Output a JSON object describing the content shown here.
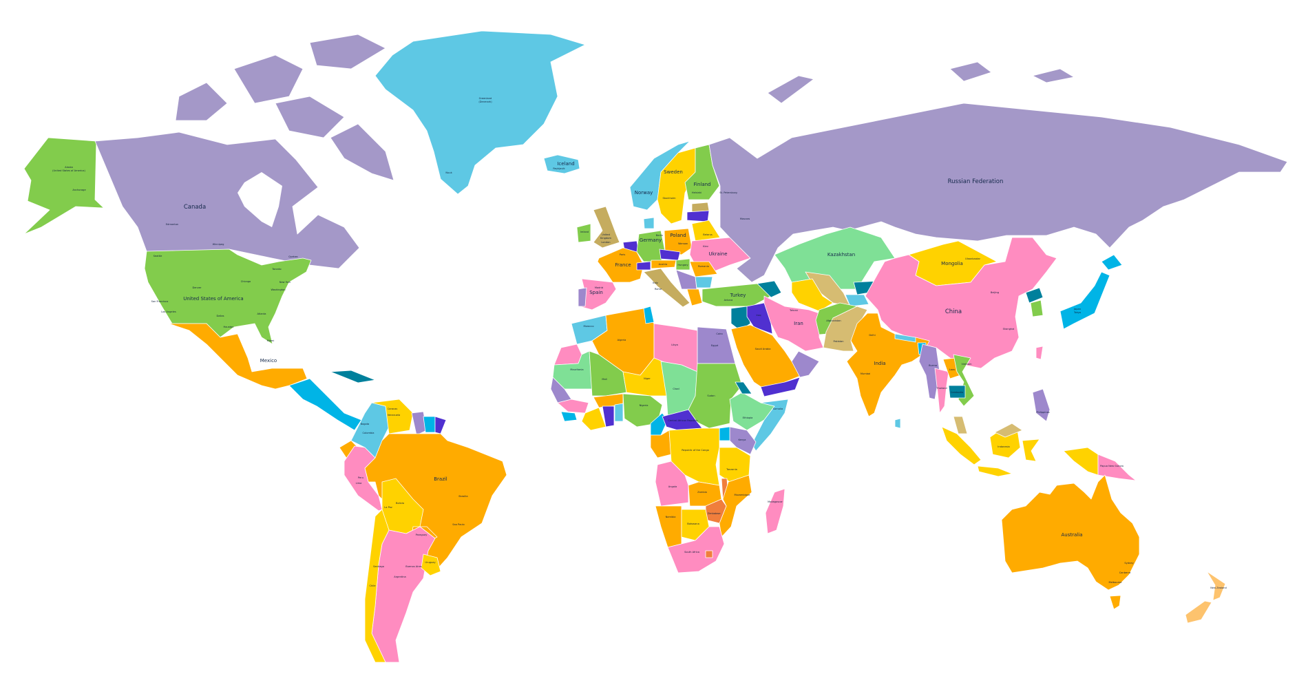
{
  "palette": {
    "purple": "#a498c8",
    "green": "#82cc4c",
    "lightgreen": "#7fe096",
    "cyan": "#5ec8e4",
    "blue": "#00b4e6",
    "orange": "#ffab00",
    "yellow": "#ffd200",
    "pink": "#ff8cc0",
    "tan": "#d6bc72",
    "olive": "#c5ac5f",
    "indigo": "#5030d0",
    "teal": "#00809c",
    "darkorange": "#f07e3c",
    "peach": "#fdc36e",
    "lavender": "#9d88cc",
    "water": "#ffffff"
  },
  "countries": {
    "alaska": "Alaska",
    "alaska_sub": "(United States of America)",
    "canada": "Canada",
    "usa": "United States of America",
    "mexico": "Mexico",
    "greenland": "Greenland",
    "greenland_sub": "(Denmark)",
    "iceland": "Iceland",
    "norway": "Norway",
    "sweden": "Sweden",
    "finland": "Finland",
    "uk": "United",
    "uk2": "Kingdom",
    "ireland": "Ireland",
    "france": "France",
    "spain": "Spain",
    "germany": "Germany",
    "poland": "Poland",
    "italy": "Italy",
    "ukraine": "Ukraine",
    "belarus": "Belarus",
    "romania": "Romania",
    "hungary": "Hungary",
    "austria": "Austria",
    "turkey": "Turkey",
    "russia": "Russian Federation",
    "kazakhstan": "Kazakhstan",
    "mongolia": "Mongolia",
    "china": "China",
    "india": "India",
    "pakistan": "Pakistan",
    "afghanistan": "Afghanistan",
    "iran": "Iran",
    "iraq": "Iraq",
    "saudi": "Saudi Arabia",
    "japan": "Japan",
    "egypt": "Egypt",
    "libya": "Libya",
    "algeria": "Algeria",
    "morocco": "Morocco",
    "mauritania": "Mauritania",
    "mali": "Mali",
    "niger": "Niger",
    "chad": "Chad",
    "sudan": "Sudan",
    "nigeria": "Nigeria",
    "ethiopia": "Ethiopia",
    "kenya": "Kenya",
    "tanzania": "Tanzania",
    "angola": "Angola",
    "zambia": "Zambia",
    "namibia": "Namibia",
    "botswana": "Botswana",
    "zimbabwe": "Zimbabwe",
    "mozambique": "Mozambique",
    "south_africa": "South Africa",
    "madagascar": "Madagascar",
    "congo": "Republic of the Congo",
    "car": "Central African Republic",
    "somalia": "Somalia",
    "brazil": "Brazil",
    "peru": "Peru",
    "bolivia": "Bolivia",
    "colombia": "Colombia",
    "venezuela": "Venezuela",
    "argentina": "Argentina",
    "chile": "Chile",
    "uruguay": "Uruguay",
    "paraguay": "Paraguay",
    "australia": "Australia",
    "new_zealand": "New Zealand",
    "indonesia": "Indonesia",
    "png": "Papua New Guinea",
    "philippines": "Philippines",
    "burma": "Burma",
    "thailand": "Thailand",
    "laos": "Laos",
    "vietnam": "Vietnam",
    "cambodia": "Cambodia"
  },
  "cities": {
    "anchorage": "Anchorage",
    "edmonton": "Edmonton",
    "winnipeg": "Winnipeg",
    "quebec": "Quebec",
    "toronto": "Toronto",
    "seattle": "Seattle",
    "chicago": "Chicago",
    "new_york": "New York",
    "washington": "Washington",
    "denver": "Denver",
    "san_francisco": "San Francisco",
    "los_angeles": "Los Angeles",
    "dallas": "Dallas",
    "atlanta": "Atlanta",
    "houston": "Houston",
    "miami": "Miami",
    "nuuk": "Nuuk",
    "reykjavik": "Reykjavik",
    "stockholm": "Stockholm",
    "helsinki": "Helsinki",
    "st_petersburg": "St. Petersburg",
    "moscow": "Moscow",
    "warsaw": "Warsaw",
    "berlin": "Berlin",
    "paris": "Paris",
    "madrid": "Madrid",
    "rome": "Rome",
    "london": "London",
    "kiev": "Kiev",
    "ankara": "Ankara",
    "ulaanbaatar": "Ulaanbaatar",
    "beijing": "Beijing",
    "shanghai": "Shanghai",
    "delhi": "Delhi",
    "mumbai": "Mumbai",
    "tehran": "Tehran",
    "tokyo": "Tokyo",
    "cairo": "Cairo",
    "brasilia": "Brasilia",
    "sao_paulo": "Sao Paulo",
    "lima": "Lima",
    "la_paz": "La Paz",
    "bogota": "Bogota",
    "caracas": "Caracas",
    "buenos_aires": "Buenos Aires",
    "santiago": "Santiago",
    "sydney": "Sydney",
    "canberra": "Canberra",
    "melbourne": "Melbourne"
  }
}
